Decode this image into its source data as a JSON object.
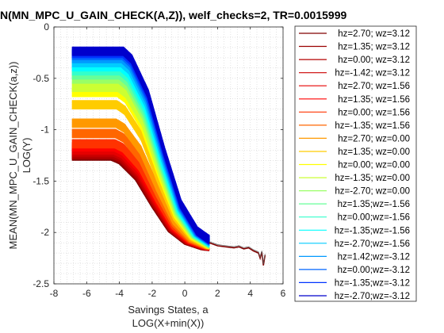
{
  "chart_data": {
    "type": "line",
    "title": "N(MN_MPC_U_GAIN_CHECK(A,Z)), welf_checks=2, TR=0.0015999",
    "xlabel": [
      "Savings States, a",
      "LOG(X+min(X))"
    ],
    "ylabel": [
      "MEAN(MN_MPC_U_GAIN_CHECK(a,z))",
      "LOG(Y)"
    ],
    "xlim": [
      -8,
      6
    ],
    "ylim": [
      -2.5,
      0
    ],
    "xticks": [
      -8,
      -6,
      -4,
      -2,
      0,
      2,
      4,
      6
    ],
    "xtick_labels": [
      "-8",
      "-6",
      "-4",
      "-2",
      "0",
      "2",
      "4",
      "6"
    ],
    "yticks": [
      -2.5,
      -2,
      -1.5,
      -1,
      -0.5,
      0
    ],
    "ytick_labels": [
      "-2.5",
      "-2",
      "-1.5",
      "-1",
      "-0.5",
      "0"
    ],
    "grid": "minor-dotted",
    "legend_position": "right-outside",
    "x_start": -6.9,
    "tail_x_end": 4.9,
    "series": [
      {
        "name": "hz=2.70; wz=3.12",
        "color": "#800000",
        "start": -1.22
      },
      {
        "name": "hz=1.35; wz=3.12",
        "color": "#9a0000",
        "start": -1.21
      },
      {
        "name": "hz=0.00; wz=3.12",
        "color": "#b40000",
        "start": -1.2
      },
      {
        "name": "hz=-1.42; wz=3.12",
        "color": "#cc0000",
        "start": -1.18
      },
      {
        "name": "hz=2.70; wz=1.56",
        "color": "#e60000",
        "start": -1.16
      },
      {
        "name": "hz=1.35; wz=1.56",
        "color": "#ff0000",
        "start": -1.13
      },
      {
        "name": "hz=0.00; wz=1.56",
        "color": "#ff3300",
        "start": -1.1
      },
      {
        "name": "hz=-1.35; wz=1.56",
        "color": "#ff6600",
        "start": -1.0
      },
      {
        "name": "hz=2.70; wz=0.00",
        "color": "#ff9900",
        "start": -0.9
      },
      {
        "name": "hz=1.35; wz=0.00",
        "color": "#ffcc00",
        "start": -0.72
      },
      {
        "name": "hz=0.00; wz=0.00",
        "color": "#ffff00",
        "start": -0.6
      },
      {
        "name": "hz=-1.35; wz=0.00",
        "color": "#ccff33",
        "start": -0.55
      },
      {
        "name": "hz=-2.70; wz=0.00",
        "color": "#99ff66",
        "start": -0.47
      },
      {
        "name": "hz=1.35;wz=-1.56",
        "color": "#66ff99",
        "start": -0.43
      },
      {
        "name": "hz=0.00;wz=-1.56",
        "color": "#33ffcc",
        "start": -0.39
      },
      {
        "name": "hz=-1.35;wz=-1.56",
        "color": "#00ffff",
        "start": -0.35
      },
      {
        "name": "hz=-2.70;wz=-1.56",
        "color": "#00ccff",
        "start": -0.31
      },
      {
        "name": "hz=1.42;wz=-3.12",
        "color": "#0099ff",
        "start": -0.27
      },
      {
        "name": "hz=0.00;wz=-3.12",
        "color": "#0066ff",
        "start": -0.24
      },
      {
        "name": "hz=-1.35;wz=-3.12",
        "color": "#0033ff",
        "start": -0.22
      },
      {
        "name": "hz=-2.70;wz=-3.12",
        "color": "#0000cc",
        "start": -0.2
      }
    ],
    "knots": [
      {
        "x": -4.5,
        "frac": 0.0
      },
      {
        "x": -4.0,
        "frac": 0.04
      },
      {
        "x": -3.0,
        "frac": 0.22
      },
      {
        "x": -2.0,
        "frac": 0.52
      },
      {
        "x": -1.0,
        "frac": 0.79
      },
      {
        "x": 0.0,
        "frac": 0.93
      },
      {
        "x": 1.0,
        "frac": 0.99
      },
      {
        "x": 1.5,
        "frac": 1.0
      }
    ],
    "end_value_high": -2.1,
    "end_value_low": -2.08,
    "tail": [
      {
        "x": 1.5,
        "y": -2.1
      },
      {
        "x": 2.0,
        "y": -2.13
      },
      {
        "x": 2.5,
        "y": -2.14
      },
      {
        "x": 3.0,
        "y": -2.15
      },
      {
        "x": 3.3,
        "y": -2.14
      },
      {
        "x": 3.6,
        "y": -2.16
      },
      {
        "x": 3.9,
        "y": -2.15
      },
      {
        "x": 4.2,
        "y": -2.18
      },
      {
        "x": 4.5,
        "y": -2.2
      },
      {
        "x": 4.6,
        "y": -2.25
      },
      {
        "x": 4.7,
        "y": -2.19
      },
      {
        "x": 4.8,
        "y": -2.32
      },
      {
        "x": 4.9,
        "y": -2.22
      }
    ]
  }
}
